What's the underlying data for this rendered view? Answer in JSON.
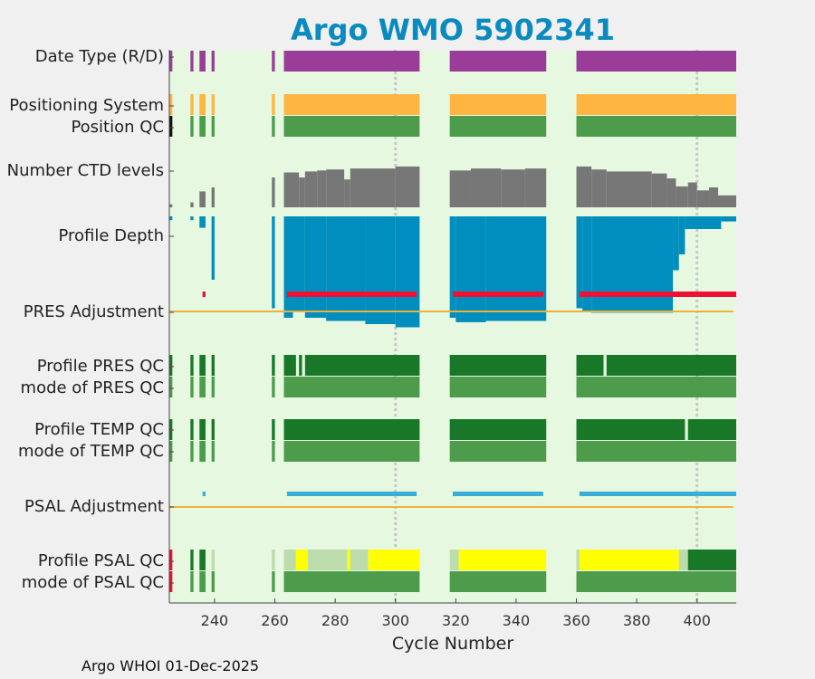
{
  "chart_data": {
    "type": "bar",
    "title": "Argo WMO 5902341",
    "xlabel": "Cycle Number",
    "xlim": [
      225,
      413
    ],
    "xticks": [
      240,
      260,
      280,
      300,
      320,
      340,
      360,
      380,
      400
    ],
    "reference_lines": [
      300,
      400
    ],
    "footer": "Argo WHOI 01-Dec-2025",
    "colors": {
      "background": "#e6f8e0",
      "purple": "#993d99",
      "orange": "#ffb540",
      "green": "#4c9c4c",
      "dark_green": "#187828",
      "gray": "#777777",
      "blue": "#008ebe",
      "red": "#ee1133",
      "light_blue": "#3aaed8",
      "pale_green": "#bcdcac",
      "yellow": "#ffff00",
      "line_orange": "#efb13c",
      "black": "#111111"
    },
    "rows": [
      {
        "label": "Date Type (R/D)",
        "segments": [
          [
            225,
            226,
            "purple"
          ],
          [
            232,
            233,
            "purple"
          ],
          [
            235,
            237,
            "purple"
          ],
          [
            239,
            240,
            "purple"
          ],
          [
            259,
            260,
            "purple"
          ],
          [
            263,
            308,
            "purple"
          ],
          [
            318,
            350,
            "purple"
          ],
          [
            360,
            413,
            "purple"
          ]
        ]
      },
      {
        "label": "Positioning System",
        "segments": [
          [
            225,
            226,
            "orange"
          ],
          [
            232,
            233,
            "orange"
          ],
          [
            235,
            237,
            "orange"
          ],
          [
            239,
            240,
            "orange"
          ],
          [
            259,
            260,
            "orange"
          ],
          [
            263,
            308,
            "orange"
          ],
          [
            318,
            350,
            "orange"
          ],
          [
            360,
            413,
            "orange"
          ]
        ]
      },
      {
        "label": "Position QC",
        "segments": [
          [
            225,
            226,
            "black"
          ],
          [
            232,
            233,
            "green"
          ],
          [
            235,
            237,
            "green"
          ],
          [
            239,
            240,
            "green"
          ],
          [
            259,
            260,
            "green"
          ],
          [
            263,
            308,
            "green"
          ],
          [
            318,
            350,
            "green"
          ],
          [
            360,
            413,
            "green"
          ]
        ]
      },
      {
        "label": "Number CTD levels",
        "ctd_levels": [
          [
            225,
            226,
            0.15
          ],
          [
            232,
            233,
            0.25
          ],
          [
            235,
            237,
            0.8
          ],
          [
            239,
            240,
            1.0
          ],
          [
            259,
            260,
            1.5
          ],
          [
            263,
            268,
            1.75
          ],
          [
            268,
            270,
            1.5
          ],
          [
            270,
            274,
            1.8
          ],
          [
            274,
            277,
            1.85
          ],
          [
            277,
            283,
            1.9
          ],
          [
            283,
            285,
            1.4
          ],
          [
            285,
            300,
            1.95
          ],
          [
            300,
            308,
            2.05
          ],
          [
            318,
            325,
            1.85
          ],
          [
            325,
            335,
            1.95
          ],
          [
            335,
            343,
            1.9
          ],
          [
            343,
            350,
            1.95
          ],
          [
            360,
            365,
            2.05
          ],
          [
            365,
            370,
            1.9
          ],
          [
            370,
            385,
            1.8
          ],
          [
            385,
            390,
            1.7
          ],
          [
            390,
            393,
            1.45
          ],
          [
            393,
            397,
            1.05
          ],
          [
            397,
            400,
            1.25
          ],
          [
            400,
            404,
            0.85
          ],
          [
            404,
            407,
            1.0
          ],
          [
            407,
            413,
            0.6
          ]
        ]
      },
      {
        "label": "Profile Depth",
        "depth_profile": [
          [
            225,
            226,
            0.06
          ],
          [
            232,
            233,
            0.06
          ],
          [
            235,
            237,
            0.18
          ],
          [
            239,
            240,
            1.0
          ],
          [
            259,
            260,
            1.45
          ],
          [
            263,
            266,
            1.6
          ],
          [
            266,
            270,
            1.5
          ],
          [
            270,
            277,
            1.6
          ],
          [
            277,
            290,
            1.65
          ],
          [
            290,
            300,
            1.7
          ],
          [
            300,
            308,
            1.75
          ],
          [
            318,
            320,
            1.6
          ],
          [
            320,
            330,
            1.67
          ],
          [
            330,
            350,
            1.65
          ],
          [
            360,
            362,
            1.45
          ],
          [
            362,
            365,
            1.5
          ],
          [
            365,
            392,
            1.52
          ],
          [
            392,
            394,
            0.85
          ],
          [
            394,
            396,
            0.6
          ],
          [
            396,
            408,
            0.2
          ],
          [
            408,
            413,
            0.08
          ]
        ]
      },
      {
        "label": "PRES Adjustment",
        "adjustment_segments": [
          [
            236,
            237
          ],
          [
            264,
            307
          ],
          [
            319,
            349
          ],
          [
            361,
            413
          ]
        ],
        "reference_line": true
      },
      {
        "label": "Profile PRES QC",
        "segments": [
          [
            225,
            226,
            "dark_green"
          ],
          [
            232,
            233,
            "dark_green"
          ],
          [
            235,
            237,
            "dark_green"
          ],
          [
            239,
            240,
            "dark_green"
          ],
          [
            259,
            260,
            "dark_green"
          ],
          [
            263,
            267,
            "dark_green"
          ],
          [
            268,
            269,
            "dark_green"
          ],
          [
            270,
            308,
            "dark_green"
          ],
          [
            318,
            350,
            "dark_green"
          ],
          [
            360,
            369,
            "dark_green"
          ],
          [
            370,
            413,
            "dark_green"
          ]
        ]
      },
      {
        "label": "mode of PRES QC",
        "segments": [
          [
            225,
            226,
            "green"
          ],
          [
            232,
            233,
            "green"
          ],
          [
            235,
            237,
            "green"
          ],
          [
            239,
            240,
            "green"
          ],
          [
            259,
            260,
            "green"
          ],
          [
            263,
            308,
            "green"
          ],
          [
            318,
            350,
            "green"
          ],
          [
            360,
            413,
            "green"
          ]
        ]
      },
      {
        "label": "Profile TEMP QC",
        "segments": [
          [
            225,
            226,
            "dark_green"
          ],
          [
            232,
            233,
            "dark_green"
          ],
          [
            235,
            237,
            "dark_green"
          ],
          [
            239,
            240,
            "dark_green"
          ],
          [
            259,
            260,
            "dark_green"
          ],
          [
            263,
            308,
            "dark_green"
          ],
          [
            318,
            350,
            "dark_green"
          ],
          [
            360,
            396,
            "dark_green"
          ],
          [
            397,
            413,
            "dark_green"
          ]
        ]
      },
      {
        "label": "mode of TEMP QC",
        "segments": [
          [
            225,
            226,
            "green"
          ],
          [
            232,
            233,
            "green"
          ],
          [
            235,
            237,
            "green"
          ],
          [
            239,
            240,
            "green"
          ],
          [
            259,
            260,
            "green"
          ],
          [
            263,
            308,
            "green"
          ],
          [
            318,
            350,
            "green"
          ],
          [
            360,
            413,
            "green"
          ]
        ]
      },
      {
        "label": "PSAL Adjustment",
        "adjustment_segments": [
          [
            236,
            237
          ],
          [
            264,
            307
          ],
          [
            319,
            349
          ],
          [
            361,
            413
          ]
        ],
        "reference_line": true
      },
      {
        "label": "Profile PSAL QC",
        "segments": [
          [
            225,
            226,
            "red"
          ],
          [
            232,
            233,
            "dark_green"
          ],
          [
            235,
            237,
            "dark_green"
          ],
          [
            239,
            240,
            "pale_green"
          ],
          [
            259,
            260,
            "pale_green"
          ],
          [
            263,
            267,
            "pale_green"
          ],
          [
            267,
            271,
            "yellow"
          ],
          [
            271,
            284,
            "pale_green"
          ],
          [
            284,
            285,
            "yellow"
          ],
          [
            285,
            291,
            "pale_green"
          ],
          [
            291,
            308,
            "yellow"
          ],
          [
            318,
            321,
            "pale_green"
          ],
          [
            321,
            350,
            "yellow"
          ],
          [
            360,
            361,
            "pale_green"
          ],
          [
            361,
            394,
            "yellow"
          ],
          [
            394,
            397,
            "pale_green"
          ],
          [
            397,
            413,
            "dark_green"
          ]
        ]
      },
      {
        "label": "mode of PSAL QC",
        "segments": [
          [
            225,
            226,
            "red"
          ],
          [
            232,
            233,
            "green"
          ],
          [
            235,
            237,
            "green"
          ],
          [
            239,
            240,
            "green"
          ],
          [
            259,
            260,
            "green"
          ],
          [
            263,
            308,
            "green"
          ],
          [
            318,
            350,
            "green"
          ],
          [
            360,
            413,
            "green"
          ]
        ]
      }
    ]
  }
}
